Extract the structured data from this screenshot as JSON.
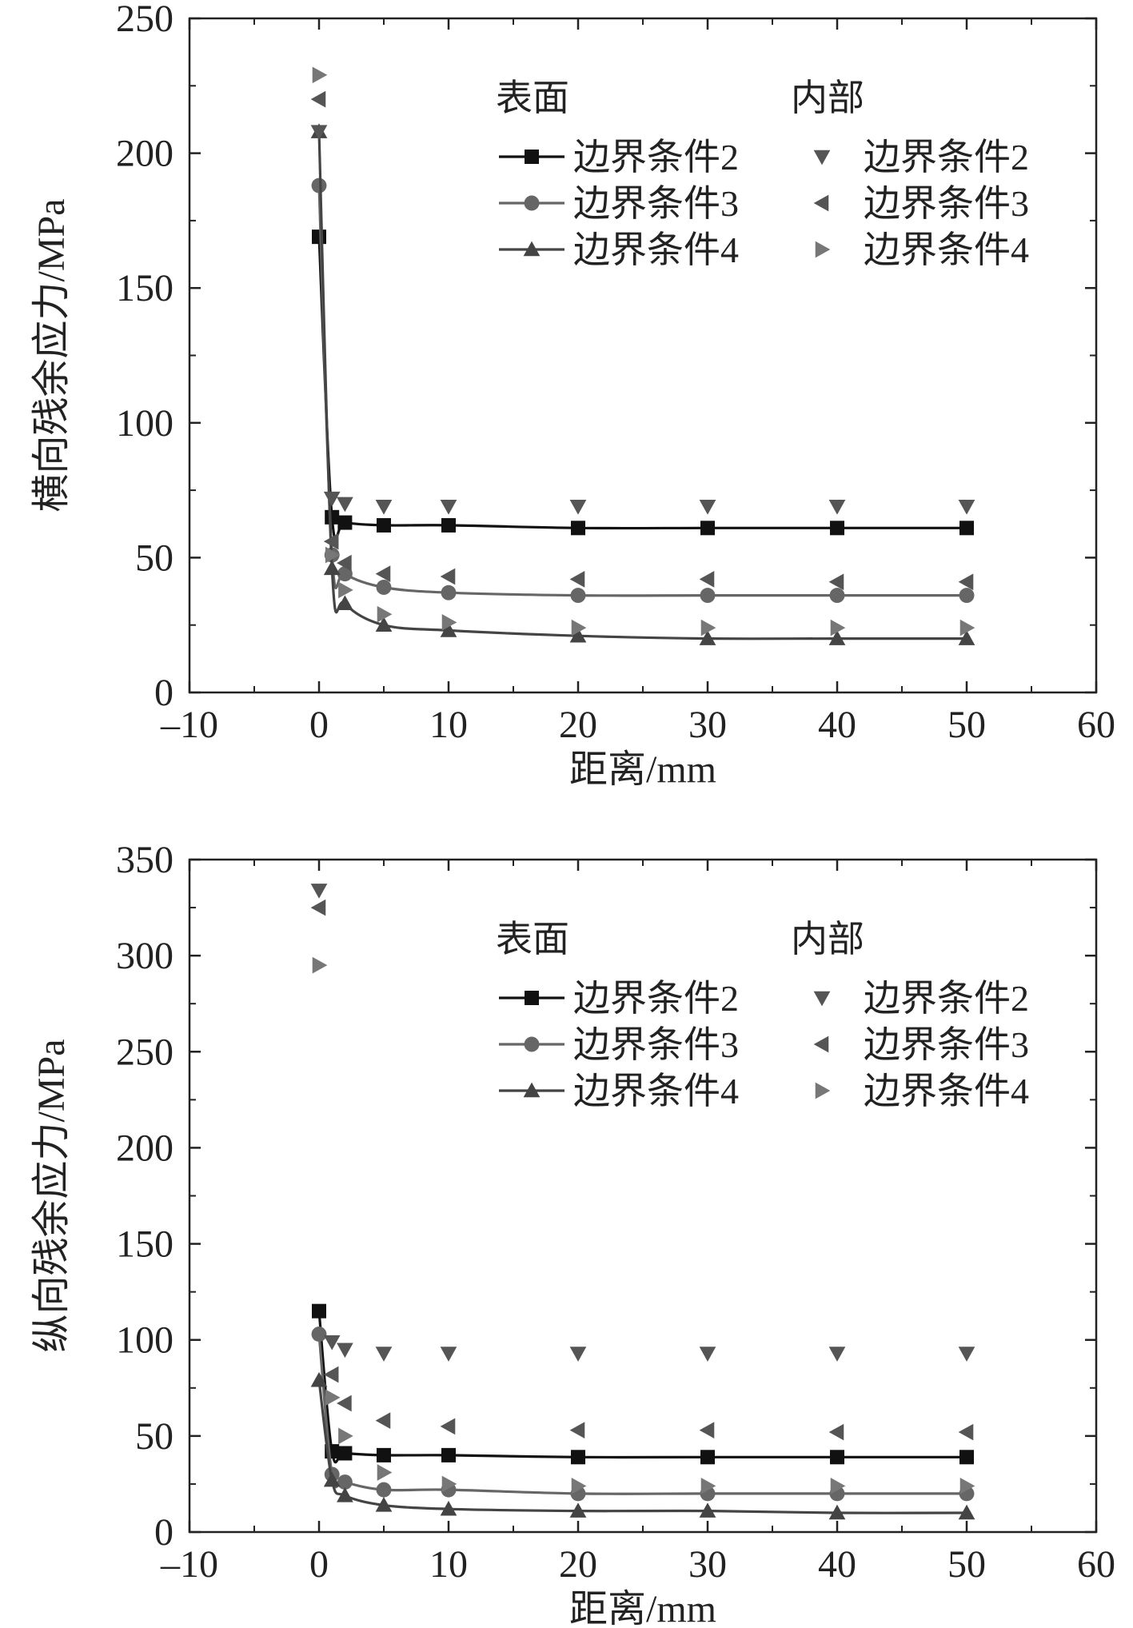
{
  "chart_data": [
    {
      "type": "scatter",
      "title": "",
      "xlabel": "距离/mm",
      "ylabel": "横向残余应力/MPa",
      "xlim": [
        -10,
        60
      ],
      "ylim": [
        0,
        250
      ],
      "xticks": [
        -10,
        0,
        10,
        20,
        30,
        40,
        50,
        60
      ],
      "yticks": [
        0,
        50,
        100,
        150,
        200,
        250
      ],
      "xtick_labels": [
        "–10",
        "0",
        "10",
        "20",
        "30",
        "40",
        "50",
        "60"
      ],
      "ytick_labels": [
        "0",
        "50",
        "100",
        "150",
        "200",
        "250"
      ],
      "legend_position": "top-right",
      "legend_groups": [
        "表面",
        "内部"
      ],
      "series": [
        {
          "name": "边界条件2",
          "group": "表面",
          "marker": "square",
          "color": "#111111",
          "line": true,
          "x": [
            0,
            1,
            2,
            5,
            10,
            20,
            30,
            40,
            50
          ],
          "values": [
            169,
            65,
            63,
            62,
            62,
            61,
            61,
            61,
            61
          ]
        },
        {
          "name": "边界条件3",
          "group": "表面",
          "marker": "circle",
          "color": "#666666",
          "line": true,
          "x": [
            0,
            1,
            2,
            5,
            10,
            20,
            30,
            40,
            50
          ],
          "values": [
            188,
            51,
            44,
            39,
            37,
            36,
            36,
            36,
            36
          ]
        },
        {
          "name": "边界条件4",
          "group": "表面",
          "marker": "triangle-up",
          "color": "#444444",
          "line": true,
          "x": [
            0,
            1,
            2,
            5,
            10,
            20,
            30,
            40,
            50
          ],
          "values": [
            208,
            46,
            33,
            25,
            23,
            21,
            20,
            20,
            20
          ]
        },
        {
          "name": "边界条件2",
          "group": "内部",
          "marker": "triangle-down",
          "color": "#555555",
          "line": false,
          "x": [
            0,
            1,
            2,
            5,
            10,
            20,
            30,
            40,
            50
          ],
          "values": [
            208,
            72,
            70,
            69,
            69,
            69,
            69,
            69,
            69
          ]
        },
        {
          "name": "边界条件3",
          "group": "内部",
          "marker": "triangle-left",
          "color": "#555555",
          "line": false,
          "x": [
            0,
            1,
            2,
            5,
            10,
            20,
            30,
            40,
            50
          ],
          "values": [
            220,
            56,
            48,
            44,
            43,
            42,
            42,
            41,
            41
          ]
        },
        {
          "name": "边界条件4",
          "group": "内部",
          "marker": "triangle-right",
          "color": "#777777",
          "line": false,
          "x": [
            0,
            1,
            2,
            5,
            10,
            20,
            30,
            40,
            50
          ],
          "values": [
            229,
            51,
            38,
            29,
            26,
            24,
            24,
            24,
            24
          ]
        }
      ]
    },
    {
      "type": "scatter",
      "title": "",
      "xlabel": "距离/mm",
      "ylabel": "纵向残余应力/MPa",
      "xlim": [
        -10,
        60
      ],
      "ylim": [
        0,
        350
      ],
      "xticks": [
        -10,
        0,
        10,
        20,
        30,
        40,
        50,
        60
      ],
      "yticks": [
        0,
        50,
        100,
        150,
        200,
        250,
        300,
        350
      ],
      "xtick_labels": [
        "–10",
        "0",
        "10",
        "20",
        "30",
        "40",
        "50",
        "60"
      ],
      "ytick_labels": [
        "0",
        "50",
        "100",
        "150",
        "200",
        "250",
        "300",
        "350"
      ],
      "legend_position": "top-right",
      "legend_groups": [
        "表面",
        "内部"
      ],
      "series": [
        {
          "name": "边界条件2",
          "group": "表面",
          "marker": "square",
          "color": "#111111",
          "line": true,
          "x": [
            0,
            1,
            2,
            5,
            10,
            20,
            30,
            40,
            50
          ],
          "values": [
            115,
            42,
            41,
            40,
            40,
            39,
            39,
            39,
            39
          ]
        },
        {
          "name": "边界条件3",
          "group": "表面",
          "marker": "circle",
          "color": "#666666",
          "line": true,
          "x": [
            0,
            1,
            2,
            5,
            10,
            20,
            30,
            40,
            50
          ],
          "values": [
            103,
            30,
            26,
            22,
            22,
            20,
            20,
            20,
            20
          ]
        },
        {
          "name": "边界条件4",
          "group": "表面",
          "marker": "triangle-up",
          "color": "#444444",
          "line": true,
          "x": [
            0,
            1,
            2,
            5,
            10,
            20,
            30,
            40,
            50
          ],
          "values": [
            79,
            27,
            19,
            14,
            12,
            11,
            11,
            10,
            10
          ]
        },
        {
          "name": "边界条件2",
          "group": "内部",
          "marker": "triangle-down",
          "color": "#555555",
          "line": false,
          "x": [
            0,
            1,
            2,
            5,
            10,
            20,
            30,
            40,
            50
          ],
          "values": [
            334,
            99,
            95,
            93,
            93,
            93,
            93,
            93,
            93
          ]
        },
        {
          "name": "边界条件3",
          "group": "内部",
          "marker": "triangle-left",
          "color": "#555555",
          "line": false,
          "x": [
            0,
            1,
            2,
            5,
            10,
            20,
            30,
            40,
            50
          ],
          "values": [
            325,
            82,
            67,
            58,
            55,
            53,
            53,
            52,
            52
          ]
        },
        {
          "name": "边界条件4",
          "group": "内部",
          "marker": "triangle-right",
          "color": "#777777",
          "line": false,
          "x": [
            0,
            1,
            2,
            5,
            10,
            20,
            30,
            40,
            50
          ],
          "values": [
            295,
            70,
            50,
            31,
            25,
            24,
            24,
            24,
            24
          ]
        }
      ]
    }
  ]
}
